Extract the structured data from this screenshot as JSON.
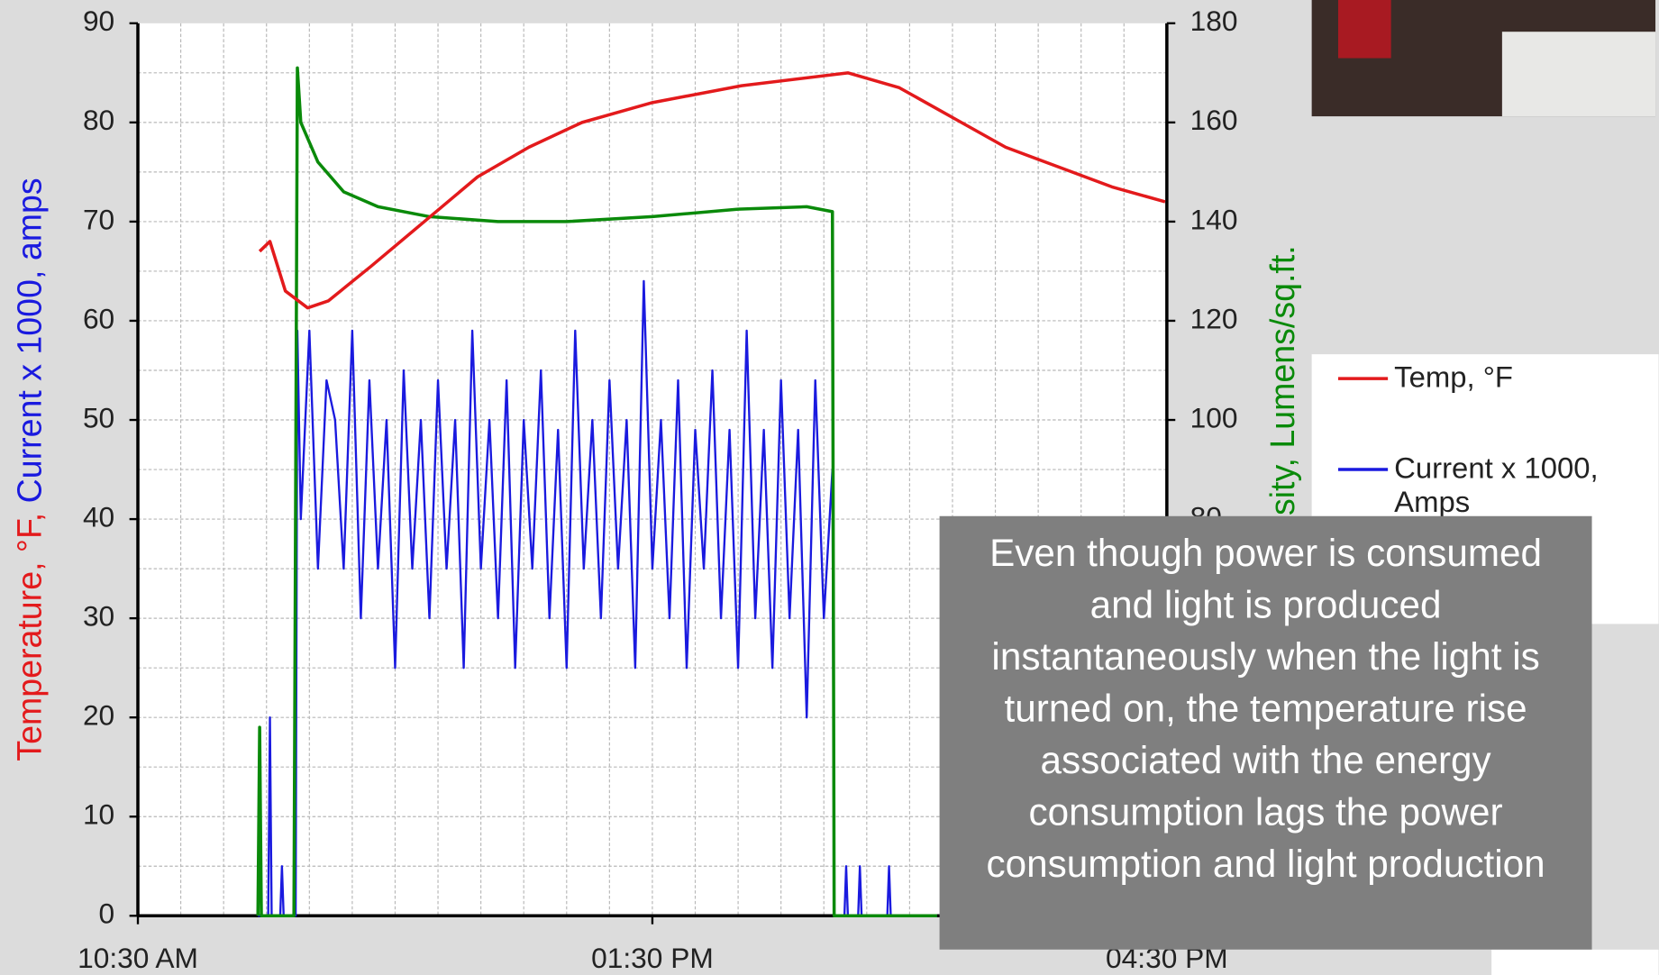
{
  "chart_data": {
    "type": "line",
    "ylabel": [
      {
        "text": "Temperature, °F, ",
        "color": "#e31a1c"
      },
      {
        "text": "Current x 1000, amps",
        "color": "#1a1adf"
      }
    ],
    "y2label": "Light Intensity, Lumens/sq.ft.",
    "xlim": [
      10.5,
      16.5
    ],
    "xticks": [
      {
        "value": 10.5,
        "label": "10:30 AM"
      },
      {
        "value": 13.5,
        "label": "01:30 PM"
      },
      {
        "value": 16.5,
        "label": "04:30 PM"
      }
    ],
    "ylim": [
      0,
      90
    ],
    "yticks": [
      0,
      10,
      20,
      30,
      40,
      50,
      60,
      70,
      80,
      90
    ],
    "y2lim": [
      0,
      180
    ],
    "y2ticks": [
      0,
      20,
      40,
      60,
      80,
      100,
      120,
      140,
      160,
      180
    ],
    "grid": true,
    "xminor": 0.25,
    "yminor": 5,
    "series": [
      {
        "name": "Temp, °F",
        "color": "#e31a1c",
        "x": [
          11.21,
          11.27,
          11.36,
          11.49,
          11.61,
          11.86,
          12.17,
          12.48,
          12.78,
          13.09,
          13.5,
          14.02,
          14.64,
          14.94,
          15.25,
          15.56,
          15.87,
          16.18,
          16.49
        ],
        "values": [
          67,
          68,
          63,
          61.3,
          62,
          65.5,
          70,
          74.5,
          77.5,
          80,
          82,
          83.7,
          85,
          83.5,
          80.5,
          77.5,
          75.5,
          73.5,
          72
        ]
      },
      {
        "name": "Current x 1000, Amps",
        "color": "#1a1adf",
        "x": [
          11.2,
          11.26,
          11.27,
          11.28,
          11.33,
          11.34,
          11.35,
          11.42,
          11.43,
          11.45,
          11.5,
          11.55,
          11.6,
          11.65,
          11.7,
          11.75,
          11.8,
          11.85,
          11.9,
          11.95,
          12,
          12.05,
          12.1,
          12.15,
          12.2,
          12.25,
          12.3,
          12.35,
          12.4,
          12.45,
          12.5,
          12.55,
          12.6,
          12.65,
          12.7,
          12.75,
          12.8,
          12.85,
          12.9,
          12.95,
          13,
          13.05,
          13.1,
          13.15,
          13.2,
          13.25,
          13.3,
          13.35,
          13.4,
          13.45,
          13.5,
          13.55,
          13.6,
          13.65,
          13.7,
          13.75,
          13.8,
          13.85,
          13.9,
          13.95,
          14,
          14.05,
          14.1,
          14.15,
          14.2,
          14.25,
          14.3,
          14.35,
          14.4,
          14.45,
          14.5,
          14.55,
          14.56,
          14.62,
          14.63,
          14.64,
          14.7,
          14.71,
          14.72,
          14.87,
          14.88,
          14.89,
          15.16
        ],
        "values": [
          0,
          0,
          20,
          0,
          0,
          5,
          0,
          0,
          59,
          40,
          59,
          35,
          54,
          50,
          35,
          59,
          30,
          54,
          35,
          50,
          25,
          55,
          35,
          50,
          30,
          54,
          35,
          50,
          25,
          59,
          35,
          50,
          30,
          54,
          25,
          50,
          35,
          55,
          30,
          49,
          25,
          59,
          35,
          50,
          30,
          54,
          35,
          50,
          25,
          64,
          35,
          50,
          30,
          54,
          25,
          49,
          35,
          55,
          30,
          49,
          25,
          59,
          30,
          49,
          25,
          54,
          30,
          49,
          20,
          54,
          30,
          45,
          0,
          0,
          5,
          0,
          0,
          5,
          0,
          0,
          5,
          0,
          0
        ]
      },
      {
        "name": "Light Intensity, Lumens/sq.ft.",
        "color": "#0a8a0a",
        "axis": "y2",
        "x": [
          11.2,
          11.21,
          11.22,
          11.41,
          11.43,
          11.45,
          11.55,
          11.7,
          11.9,
          12.2,
          12.6,
          13.0,
          13.5,
          14.0,
          14.4,
          14.55,
          14.56,
          15.16
        ],
        "values": [
          0,
          38,
          0,
          0,
          171,
          160,
          152,
          146,
          143,
          141,
          140,
          140,
          141,
          142.5,
          143,
          142,
          0,
          0
        ]
      }
    ]
  },
  "callout": "Even though power is consumed and light is produced instantaneously when the light is turned on, the temperature rise associated with the energy consumption lags the power consumption and light production"
}
